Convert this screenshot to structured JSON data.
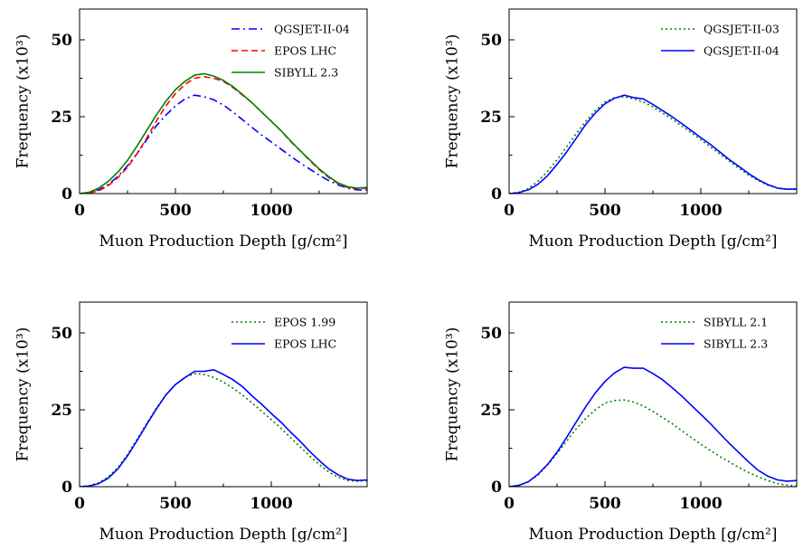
{
  "chart_data": [
    {
      "type": "line",
      "xlabel": "Muon Production Depth [g/cm²]",
      "ylabel": "Frequency (x10³)",
      "xlim": [
        0,
        1500
      ],
      "ylim": [
        0,
        60
      ],
      "xticks": [
        "0",
        "500",
        "1000"
      ],
      "yticks": [
        "0",
        "25",
        "50"
      ],
      "legend_position": "top-right",
      "series": [
        {
          "name": "QGSJET-II-04",
          "color": "#0000ff",
          "style": "dashdot",
          "x": [
            0,
            50,
            100,
            150,
            200,
            250,
            300,
            350,
            400,
            450,
            500,
            550,
            600,
            650,
            700,
            750,
            800,
            850,
            900,
            950,
            1000,
            1050,
            1100,
            1150,
            1200,
            1250,
            1300,
            1350,
            1400,
            1450,
            1500
          ],
          "y": [
            0,
            0.3,
            1.2,
            3.0,
            5.6,
            9.0,
            13.0,
            17.5,
            22.0,
            25.5,
            28.5,
            30.8,
            32.0,
            31.5,
            30.5,
            28.8,
            26.5,
            24.0,
            21.5,
            19.0,
            16.8,
            14.5,
            12.2,
            10.0,
            8.0,
            6.0,
            4.2,
            2.8,
            1.7,
            1.2,
            1.2
          ]
        },
        {
          "name": "EPOS LHC",
          "color": "#ff0000",
          "style": "dashed",
          "x": [
            0,
            50,
            100,
            150,
            200,
            250,
            300,
            350,
            400,
            450,
            500,
            550,
            600,
            650,
            700,
            750,
            800,
            850,
            900,
            950,
            1000,
            1050,
            1100,
            1150,
            1200,
            1250,
            1300,
            1350,
            1400,
            1450,
            1500
          ],
          "y": [
            0,
            0.2,
            0.9,
            2.6,
            5.2,
            8.5,
            13.0,
            18.0,
            23.5,
            28.5,
            32.5,
            35.5,
            37.5,
            38.0,
            37.5,
            36.5,
            34.5,
            32.0,
            29.5,
            26.5,
            23.5,
            20.5,
            17.0,
            14.0,
            10.8,
            7.8,
            5.2,
            3.2,
            2.0,
            1.6,
            1.8
          ]
        },
        {
          "name": "SIBYLL 2.3",
          "color": "#008000",
          "style": "solid",
          "x": [
            0,
            50,
            100,
            150,
            200,
            250,
            300,
            350,
            400,
            450,
            500,
            550,
            600,
            650,
            700,
            750,
            800,
            850,
            900,
            950,
            1000,
            1050,
            1100,
            1150,
            1200,
            1250,
            1300,
            1350,
            1400,
            1450,
            1500
          ],
          "y": [
            0,
            0.4,
            1.8,
            4.0,
            7.0,
            10.8,
            15.5,
            20.5,
            25.5,
            30.0,
            33.8,
            36.5,
            38.5,
            39.0,
            38.2,
            36.8,
            34.8,
            32.2,
            29.5,
            26.5,
            23.5,
            20.5,
            17.2,
            14.0,
            11.0,
            8.0,
            5.5,
            3.4,
            2.2,
            1.8,
            2.0
          ]
        }
      ]
    },
    {
      "type": "line",
      "xlabel": "Muon Production Depth [g/cm²]",
      "ylabel": "Frequency (x10³)",
      "xlim": [
        0,
        1500
      ],
      "ylim": [
        0,
        60
      ],
      "xticks": [
        "0",
        "500",
        "1000"
      ],
      "yticks": [
        "0",
        "25",
        "50"
      ],
      "legend_position": "top-right",
      "series": [
        {
          "name": "QGSJET-II-03",
          "color": "#008000",
          "style": "dotted",
          "x": [
            0,
            50,
            100,
            150,
            200,
            250,
            300,
            350,
            400,
            450,
            500,
            550,
            600,
            650,
            700,
            750,
            800,
            850,
            900,
            950,
            1000,
            1050,
            1100,
            1150,
            1200,
            1250,
            1300,
            1350,
            1400,
            1450,
            1500
          ],
          "y": [
            0,
            0.4,
            1.6,
            4.0,
            7.2,
            11.0,
            15.2,
            19.5,
            23.5,
            27.0,
            29.8,
            31.2,
            31.5,
            30.8,
            29.8,
            28.2,
            26.2,
            24.2,
            22.0,
            19.8,
            17.5,
            15.2,
            12.8,
            10.5,
            8.2,
            6.0,
            4.2,
            2.7,
            1.8,
            1.4,
            1.4
          ]
        },
        {
          "name": "QGSJET-II-04",
          "color": "#0000ff",
          "style": "solid",
          "x": [
            0,
            50,
            100,
            150,
            200,
            250,
            300,
            350,
            400,
            450,
            500,
            550,
            600,
            650,
            700,
            750,
            800,
            850,
            900,
            950,
            1000,
            1050,
            1100,
            1150,
            1200,
            1250,
            1300,
            1350,
            1400,
            1450,
            1500
          ],
          "y": [
            0,
            0.3,
            1.2,
            3.0,
            5.8,
            9.5,
            13.5,
            18.0,
            22.5,
            26.2,
            29.2,
            31.0,
            32.0,
            31.2,
            30.8,
            29.0,
            27.0,
            25.0,
            22.8,
            20.5,
            18.2,
            16.0,
            13.5,
            11.0,
            8.8,
            6.5,
            4.5,
            2.9,
            1.8,
            1.4,
            1.5
          ]
        }
      ]
    },
    {
      "type": "line",
      "xlabel": "Muon Production Depth [g/cm²]",
      "ylabel": "Frequency (x10³)",
      "xlim": [
        0,
        1500
      ],
      "ylim": [
        0,
        60
      ],
      "xticks": [
        "0",
        "500",
        "1000"
      ],
      "yticks": [
        "0",
        "25",
        "50"
      ],
      "legend_position": "top-right",
      "series": [
        {
          "name": "EPOS 1.99",
          "color": "#008000",
          "style": "dotted",
          "x": [
            0,
            50,
            100,
            150,
            200,
            250,
            300,
            350,
            400,
            450,
            500,
            550,
            600,
            650,
            700,
            750,
            800,
            850,
            900,
            950,
            1000,
            1050,
            1100,
            1150,
            1200,
            1250,
            1300,
            1350,
            1400,
            1450,
            1500
          ],
          "y": [
            0,
            0.3,
            1.3,
            3.2,
            6.2,
            10.5,
            15.5,
            20.5,
            25.5,
            29.8,
            33.2,
            35.5,
            36.8,
            36.5,
            35.5,
            34.0,
            32.0,
            29.8,
            27.2,
            24.5,
            21.8,
            19.0,
            16.0,
            13.0,
            10.0,
            7.2,
            4.8,
            3.0,
            2.0,
            1.8,
            2.0
          ]
        },
        {
          "name": "EPOS LHC",
          "color": "#0000ff",
          "style": "solid",
          "x": [
            0,
            50,
            100,
            150,
            200,
            250,
            300,
            350,
            400,
            450,
            500,
            550,
            600,
            650,
            700,
            750,
            800,
            850,
            900,
            950,
            1000,
            1050,
            1100,
            1150,
            1200,
            1250,
            1300,
            1350,
            1400,
            1450,
            1500
          ],
          "y": [
            0,
            0.2,
            1.0,
            2.8,
            5.8,
            10.0,
            15.0,
            20.2,
            25.2,
            29.8,
            33.2,
            35.5,
            37.5,
            37.5,
            38.0,
            36.5,
            34.8,
            32.5,
            29.5,
            26.8,
            23.8,
            21.0,
            17.8,
            14.8,
            11.5,
            8.5,
            5.8,
            3.8,
            2.4,
            2.0,
            2.2
          ]
        }
      ]
    },
    {
      "type": "line",
      "xlabel": "Muon Production Depth [g/cm²]",
      "ylabel": "Frequency (x10³)",
      "xlim": [
        0,
        1500
      ],
      "ylim": [
        0,
        60
      ],
      "xticks": [
        "0",
        "500",
        "1000"
      ],
      "yticks": [
        "0",
        "25",
        "50"
      ],
      "legend_position": "top-right",
      "series": [
        {
          "name": "SIBYLL 2.1",
          "color": "#008000",
          "style": "dotted",
          "x": [
            0,
            50,
            100,
            150,
            200,
            250,
            300,
            350,
            400,
            450,
            500,
            550,
            600,
            650,
            700,
            750,
            800,
            850,
            900,
            950,
            1000,
            1050,
            1100,
            1150,
            1200,
            1250,
            1300,
            1350,
            1400,
            1450,
            1500
          ],
          "y": [
            0,
            0.4,
            1.6,
            3.8,
            7.0,
            10.8,
            14.8,
            18.8,
            22.2,
            25.0,
            27.2,
            28.0,
            28.2,
            27.5,
            26.2,
            24.5,
            22.5,
            20.5,
            18.2,
            16.0,
            13.8,
            11.8,
            9.8,
            8.0,
            6.2,
            4.6,
            3.2,
            2.0,
            1.0,
            0.5,
            0.2
          ]
        },
        {
          "name": "SIBYLL 2.3",
          "color": "#0000ff",
          "style": "solid",
          "x": [
            0,
            50,
            100,
            150,
            200,
            250,
            300,
            350,
            400,
            450,
            500,
            550,
            600,
            650,
            700,
            750,
            800,
            850,
            900,
            950,
            1000,
            1050,
            1100,
            1150,
            1200,
            1250,
            1300,
            1350,
            1400,
            1450,
            1500
          ],
          "y": [
            0,
            0.4,
            1.6,
            4.0,
            7.2,
            11.2,
            16.0,
            21.0,
            26.0,
            30.5,
            34.2,
            37.0,
            38.8,
            38.5,
            38.5,
            36.8,
            34.8,
            32.2,
            29.5,
            26.5,
            23.5,
            20.5,
            17.2,
            14.0,
            11.0,
            8.0,
            5.3,
            3.4,
            2.2,
            1.8,
            2.0
          ]
        }
      ]
    }
  ]
}
